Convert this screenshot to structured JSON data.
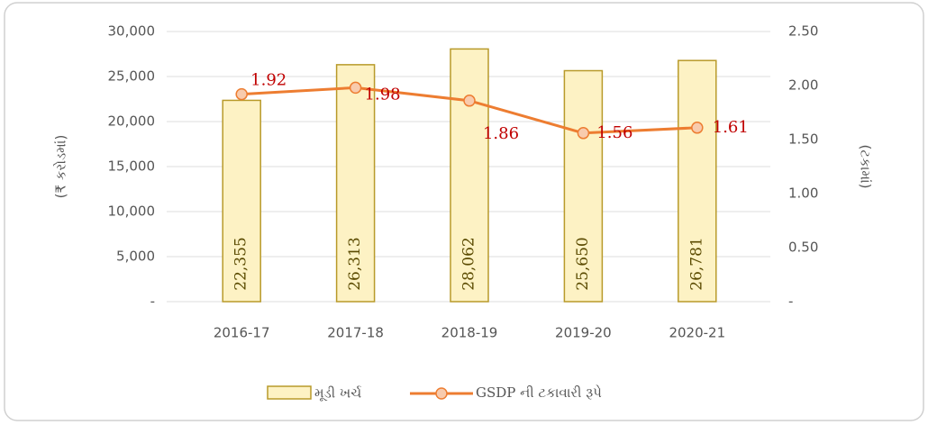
{
  "chart_data": {
    "type": "bar",
    "categories": [
      "2016-17",
      "2017-18",
      "2018-19",
      "2019-20",
      "2020-21"
    ],
    "series": [
      {
        "name": "મૂડી ખર્ચ",
        "type": "bar",
        "color": "#fdf2c4",
        "stroke": "#b89a2a",
        "values": [
          22355,
          26313,
          28062,
          25650,
          26781
        ],
        "value_labels": [
          "22,355",
          "26,313",
          "28,062",
          "25,650",
          "26,781"
        ]
      },
      {
        "name": "GSDP ની ટકાવારી રૂપે",
        "type": "line",
        "axis": "y2",
        "color": "#ed7d31",
        "values": [
          1.92,
          1.98,
          1.86,
          1.56,
          1.61
        ]
      }
    ],
    "ylabel": "(₹ કરોડમાં)",
    "y2label": "(ટકામાં)",
    "ylim": [
      0,
      30000
    ],
    "yticks": [
      {
        "value": 0,
        "label": "-"
      },
      {
        "value": 5000,
        "label": "5,000"
      },
      {
        "value": 10000,
        "label": "10,000"
      },
      {
        "value": 15000,
        "label": "15,000"
      },
      {
        "value": 20000,
        "label": "20,000"
      },
      {
        "value": 25000,
        "label": "25,000"
      },
      {
        "value": 30000,
        "label": "30,000"
      }
    ],
    "y2lim": [
      0,
      2.5
    ],
    "y2ticks": [
      {
        "value": 0,
        "label": "-"
      },
      {
        "value": 0.5,
        "label": "0.50"
      },
      {
        "value": 1,
        "label": "1.00"
      },
      {
        "value": 1.5,
        "label": "1.50"
      },
      {
        "value": 2,
        "label": "2.00"
      },
      {
        "value": 2.5,
        "label": "2.50"
      }
    ],
    "grid": true,
    "legend": "bottom"
  }
}
